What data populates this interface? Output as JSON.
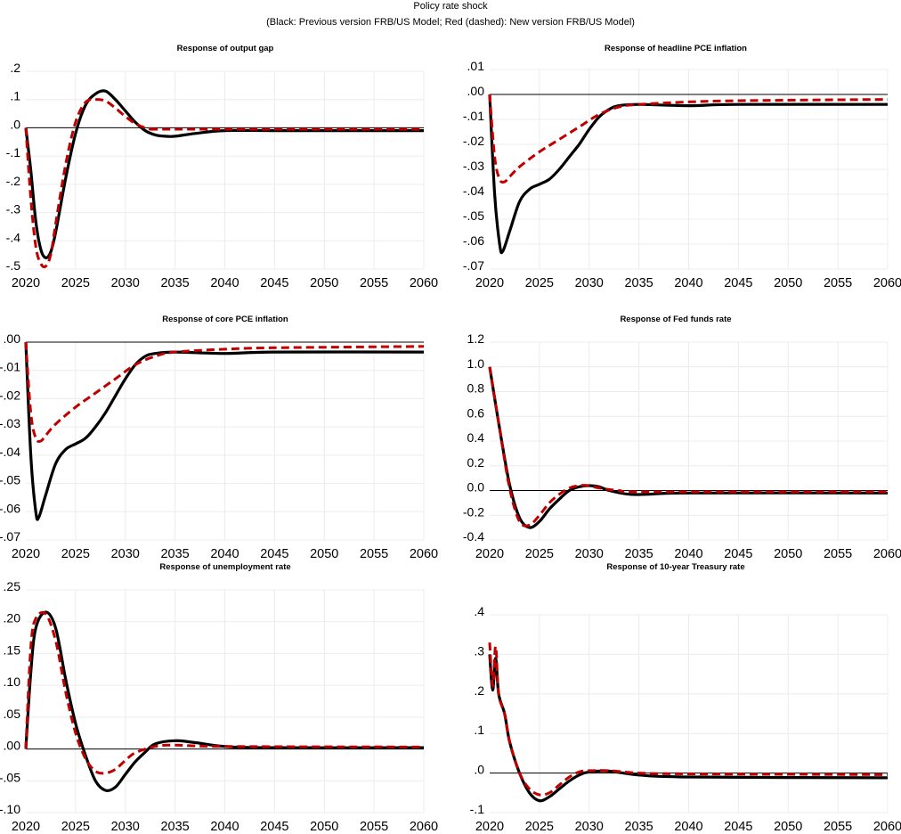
{
  "title": "Policy rate shock",
  "subtitle": "(Black: Previous version FRB/US Model; Red (dashed): New version FRB/US Model)",
  "colors": {
    "previous": "#000000",
    "new": "#c00000",
    "grid": "#ececec"
  },
  "chart_data": [
    {
      "type": "line",
      "title": "Response of output gap",
      "xlim": [
        2020,
        2060
      ],
      "xticks": [
        "2020",
        "2025",
        "2030",
        "2035",
        "2040",
        "2045",
        "2050",
        "2055",
        "2060"
      ],
      "ylim": [
        -0.5,
        0.2
      ],
      "yticks": [
        0.2,
        0.1,
        0,
        -0.1,
        -0.2,
        -0.3,
        -0.4,
        -0.5
      ],
      "ytick_labels": [
        ".2",
        ".1",
        ".0",
        "-.1",
        "-.2",
        "-.3",
        "-.4",
        "-.5"
      ],
      "grid": true,
      "series": [
        {
          "model": "previous",
          "style": "solid",
          "x": [
            2020,
            2020.5,
            2021,
            2021.5,
            2022,
            2022.5,
            2023,
            2024,
            2025,
            2026,
            2027,
            2028,
            2029,
            2030,
            2031,
            2032,
            2033,
            2034,
            2035,
            2037,
            2040,
            2045,
            2060
          ],
          "y": [
            0,
            -0.15,
            -0.33,
            -0.43,
            -0.46,
            -0.44,
            -0.37,
            -0.18,
            -0.02,
            0.08,
            0.12,
            0.13,
            0.1,
            0.06,
            0.02,
            -0.01,
            -0.025,
            -0.03,
            -0.03,
            -0.02,
            -0.01,
            -0.01,
            -0.01
          ]
        },
        {
          "model": "new",
          "style": "dashed",
          "x": [
            2020,
            2020.5,
            2021,
            2021.5,
            2022,
            2022.5,
            2023,
            2024,
            2025,
            2026,
            2027,
            2028,
            2029,
            2030,
            2031,
            2032,
            2033,
            2035,
            2060
          ],
          "y": [
            0,
            -0.25,
            -0.42,
            -0.48,
            -0.49,
            -0.45,
            -0.34,
            -0.13,
            0.02,
            0.09,
            0.1,
            0.095,
            0.07,
            0.04,
            0.015,
            0.0,
            -0.005,
            -0.005,
            -0.005
          ]
        }
      ]
    },
    {
      "type": "line",
      "title": "Response of headline PCE inflation",
      "xlim": [
        2020,
        2060
      ],
      "xticks": [
        "2020",
        "2025",
        "2030",
        "2035",
        "2040",
        "2045",
        "2050",
        "2055",
        "2060"
      ],
      "ylim": [
        -0.07,
        0.01
      ],
      "yticks": [
        0.01,
        0,
        -0.01,
        -0.02,
        -0.03,
        -0.04,
        -0.05,
        -0.06,
        -0.07
      ],
      "ytick_labels": [
        ".01",
        ".00",
        "-.01",
        "-.02",
        "-.03",
        "-.04",
        "-.05",
        "-.06",
        "-.07"
      ],
      "grid": true,
      "series": [
        {
          "model": "previous",
          "style": "solid",
          "x": [
            2020,
            2020.5,
            2021,
            2021.3,
            2022,
            2023,
            2024,
            2025,
            2026,
            2027,
            2028,
            2029,
            2030,
            2031,
            2032,
            2033,
            2035,
            2040,
            2045,
            2060
          ],
          "y": [
            0,
            -0.04,
            -0.06,
            -0.063,
            -0.055,
            -0.043,
            -0.038,
            -0.036,
            -0.034,
            -0.03,
            -0.025,
            -0.02,
            -0.014,
            -0.009,
            -0.006,
            -0.0045,
            -0.004,
            -0.0045,
            -0.004,
            -0.004
          ]
        },
        {
          "model": "new",
          "style": "dashed",
          "x": [
            2020,
            2020.5,
            2021,
            2021.5,
            2022,
            2023,
            2025,
            2027,
            2029,
            2031,
            2033,
            2035,
            2040,
            2045,
            2060
          ],
          "y": [
            0,
            -0.025,
            -0.034,
            -0.035,
            -0.033,
            -0.029,
            -0.023,
            -0.018,
            -0.013,
            -0.008,
            -0.005,
            -0.004,
            -0.003,
            -0.0025,
            -0.002
          ]
        }
      ]
    },
    {
      "type": "line",
      "title": "Response of core PCE inflation",
      "xlim": [
        2020,
        2060
      ],
      "xticks": [
        "2020",
        "2025",
        "2030",
        "2035",
        "2040",
        "2045",
        "2050",
        "2055",
        "2060"
      ],
      "ylim": [
        -0.07,
        0.0
      ],
      "yticks": [
        0,
        -0.01,
        -0.02,
        -0.03,
        -0.04,
        -0.05,
        -0.06,
        -0.07
      ],
      "ytick_labels": [
        ".00",
        "-.01",
        "-.02",
        "-.03",
        "-.04",
        "-.05",
        "-.06",
        "-.07"
      ],
      "grid": true,
      "series": [
        {
          "model": "previous",
          "style": "solid",
          "x": [
            2020,
            2020.5,
            2021,
            2021.3,
            2022,
            2023,
            2024,
            2025,
            2026,
            2027,
            2028,
            2029,
            2030,
            2031,
            2032,
            2033,
            2035,
            2040,
            2045,
            2060
          ],
          "y": [
            0,
            -0.04,
            -0.06,
            -0.062,
            -0.054,
            -0.043,
            -0.038,
            -0.036,
            -0.034,
            -0.03,
            -0.025,
            -0.019,
            -0.013,
            -0.008,
            -0.005,
            -0.004,
            -0.0035,
            -0.004,
            -0.0035,
            -0.0035
          ]
        },
        {
          "model": "new",
          "style": "dashed",
          "x": [
            2020,
            2020.5,
            2021,
            2021.5,
            2022,
            2023,
            2025,
            2027,
            2029,
            2031,
            2033,
            2035,
            2040,
            2045,
            2060
          ],
          "y": [
            0,
            -0.025,
            -0.034,
            -0.035,
            -0.033,
            -0.029,
            -0.023,
            -0.018,
            -0.013,
            -0.008,
            -0.005,
            -0.0035,
            -0.0025,
            -0.002,
            -0.0015
          ]
        }
      ]
    },
    {
      "type": "line",
      "title": "Response of Fed funds rate",
      "xlim": [
        2020,
        2060
      ],
      "xticks": [
        "2020",
        "2025",
        "2030",
        "2035",
        "2040",
        "2045",
        "2050",
        "2055",
        "2060"
      ],
      "ylim": [
        -0.4,
        1.2
      ],
      "yticks": [
        1.2,
        1.0,
        0.8,
        0.6,
        0.4,
        0.2,
        0,
        -0.2,
        -0.4
      ],
      "ytick_labels": [
        "1.2",
        "1.0",
        "0.8",
        "0.6",
        "0.4",
        "0.2",
        "0.0",
        "-0.2",
        "-0.4"
      ],
      "grid": true,
      "series": [
        {
          "model": "previous",
          "style": "solid",
          "x": [
            2020,
            2021,
            2022,
            2023,
            2024,
            2025,
            2026,
            2027,
            2028,
            2029,
            2030,
            2031,
            2032,
            2034,
            2036,
            2040,
            2060
          ],
          "y": [
            1.0,
            0.5,
            0.05,
            -0.22,
            -0.3,
            -0.25,
            -0.15,
            -0.07,
            0.0,
            0.03,
            0.04,
            0.03,
            0.0,
            -0.03,
            -0.03,
            -0.02,
            -0.02
          ]
        },
        {
          "model": "new",
          "style": "dashed",
          "x": [
            2020,
            2021,
            2022,
            2023,
            2024,
            2025,
            2026,
            2027,
            2028,
            2029,
            2030,
            2031,
            2033,
            2036,
            2060
          ],
          "y": [
            1.0,
            0.5,
            0.02,
            -0.25,
            -0.28,
            -0.2,
            -0.1,
            -0.03,
            0.02,
            0.04,
            0.04,
            0.02,
            0.0,
            -0.01,
            -0.01
          ]
        }
      ]
    },
    {
      "type": "line",
      "title": "Response of unemployment rate",
      "xlim": [
        2020,
        2060
      ],
      "xticks": [
        "2020",
        "2025",
        "2030",
        "2035",
        "2040",
        "2045",
        "2050",
        "2055",
        "2060"
      ],
      "ylim": [
        -0.1,
        0.25
      ],
      "yticks": [
        0.25,
        0.2,
        0.15,
        0.1,
        0.05,
        0,
        -0.05,
        -0.1
      ],
      "ytick_labels": [
        ".25",
        ".20",
        ".15",
        ".10",
        ".05",
        ".00",
        "-.05",
        "-.10"
      ],
      "grid": true,
      "series": [
        {
          "model": "previous",
          "style": "solid",
          "x": [
            2020,
            2020.5,
            2021,
            2022,
            2023,
            2024,
            2025,
            2026,
            2027,
            2028,
            2029,
            2030,
            2031,
            2032,
            2033,
            2035,
            2037,
            2040,
            2045,
            2060
          ],
          "y": [
            0,
            0.12,
            0.19,
            0.215,
            0.19,
            0.11,
            0.04,
            -0.01,
            -0.05,
            -0.065,
            -0.06,
            -0.04,
            -0.02,
            -0.005,
            0.008,
            0.013,
            0.01,
            0.004,
            0.002,
            0.002
          ]
        },
        {
          "model": "new",
          "style": "dashed",
          "x": [
            2020,
            2020.5,
            2021,
            2022,
            2023,
            2024,
            2025,
            2026,
            2027,
            2028,
            2029,
            2030,
            2031,
            2033,
            2035,
            2040,
            2060
          ],
          "y": [
            0,
            0.16,
            0.205,
            0.212,
            0.17,
            0.09,
            0.025,
            -0.015,
            -0.035,
            -0.038,
            -0.032,
            -0.018,
            -0.006,
            0.004,
            0.006,
            0.004,
            0.003
          ]
        }
      ]
    },
    {
      "type": "line",
      "title": "Response of 10-year Treasury rate",
      "xlim": [
        2020,
        2060
      ],
      "xticks": [
        "2020",
        "2025",
        "2030",
        "2035",
        "2040",
        "2045",
        "2050",
        "2055",
        "2060"
      ],
      "ylim": [
        -0.1,
        0.4
      ],
      "yticks": [
        0.4,
        0.3,
        0.2,
        0.1,
        0,
        -0.1
      ],
      "ytick_labels": [
        ".4",
        ".3",
        ".2",
        ".1",
        ".0",
        "-.1"
      ],
      "grid": true,
      "series": [
        {
          "model": "previous",
          "style": "solid",
          "x": [
            2020,
            2020.3,
            2020.6,
            2020.9,
            2021.5,
            2022,
            2023,
            2024,
            2025,
            2026,
            2027,
            2028,
            2029,
            2030,
            2032,
            2035,
            2040,
            2060
          ],
          "y": [
            0.3,
            0.21,
            0.29,
            0.2,
            0.15,
            0.08,
            0.0,
            -0.05,
            -0.07,
            -0.06,
            -0.04,
            -0.02,
            -0.005,
            0.003,
            0.005,
            -0.005,
            -0.01,
            -0.012
          ]
        },
        {
          "model": "new",
          "style": "dashed",
          "x": [
            2020,
            2020.3,
            2020.6,
            2020.9,
            2021.5,
            2022,
            2023,
            2024,
            2025,
            2026,
            2027,
            2028,
            2029,
            2030,
            2032,
            2035,
            2040,
            2060
          ],
          "y": [
            0.33,
            0.22,
            0.32,
            0.2,
            0.15,
            0.08,
            0.0,
            -0.04,
            -0.055,
            -0.05,
            -0.03,
            -0.01,
            0.003,
            0.006,
            0.006,
            0.0,
            -0.002,
            -0.004
          ]
        }
      ]
    }
  ]
}
